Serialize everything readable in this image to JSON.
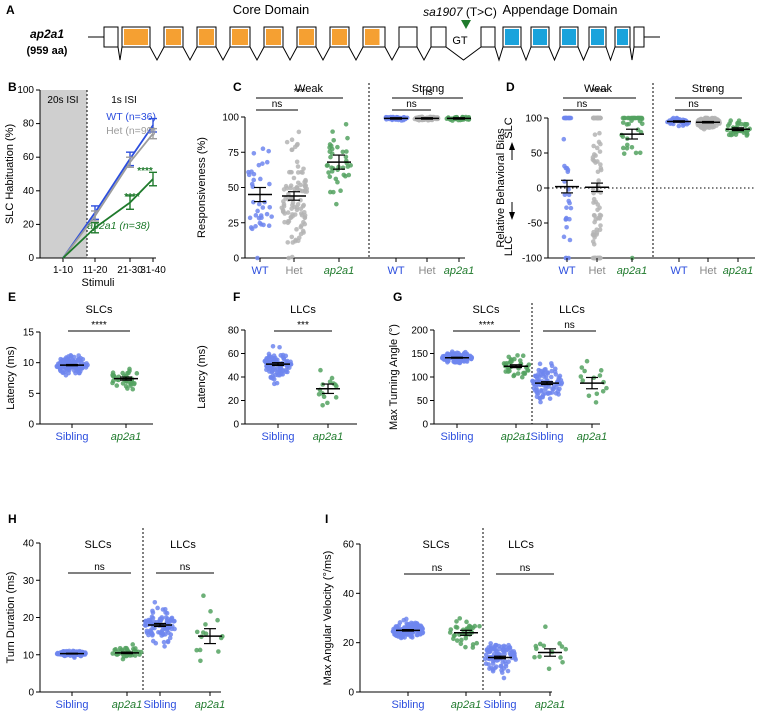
{
  "colors": {
    "wt": "#2c4ede",
    "het": "#9c9c9c",
    "mut": "#1f7a2c",
    "wt_pt": "#6f86ee",
    "het_pt": "#b4b4b4",
    "mut_pt": "#53a260",
    "core": "#f5a032",
    "app": "#1aa3dc",
    "isi": "#cfcfcf"
  },
  "panel_a": {
    "letter": "A",
    "gene": "ap2a1",
    "aa": "(959 aa)",
    "core_label": "Core Domain",
    "app_label": "Appendage Domain",
    "allele": "sa1907",
    "mutation": " (T>C)",
    "gt": "GT"
  },
  "panel_letters": [
    "B",
    "C",
    "D",
    "E",
    "F",
    "G",
    "H",
    "I"
  ],
  "chart_data": [
    {
      "id": "B",
      "type": "line",
      "xlabel": "Stimuli",
      "ylabel": "SLC Habituation (%)",
      "ylim": [
        0,
        100
      ],
      "yticks": [
        "0",
        "20",
        "40",
        "60",
        "80",
        "100"
      ],
      "categories": [
        "1-10",
        "11-20",
        "21-30",
        "31-40"
      ],
      "isi_labels": [
        "20s ISI",
        "1s ISI"
      ],
      "series": [
        {
          "name": "WT (n=36)",
          "key": "wt",
          "values": [
            0,
            27,
            59,
            79
          ],
          "err": [
            0,
            4,
            4,
            4
          ]
        },
        {
          "name": "Het (n=99)",
          "key": "het",
          "values": [
            0,
            25,
            57,
            74
          ],
          "err": [
            0,
            3,
            3,
            3
          ]
        },
        {
          "name": "ap2a1 (n=38)",
          "key": "mut",
          "values": [
            0,
            18,
            33,
            47
          ],
          "err": [
            0,
            3,
            4,
            4
          ]
        }
      ],
      "annotations": [
        "****",
        "****"
      ]
    },
    {
      "id": "C",
      "type": "scatter",
      "ylabel": "Responsiveness (%)",
      "ylim": [
        0,
        100
      ],
      "yticks": [
        "0",
        "25",
        "50",
        "75",
        "100"
      ],
      "sections": [
        "Weak",
        "Strong"
      ],
      "groups": [
        {
          "label": "WT",
          "key": "wt",
          "mean": 45,
          "sem": 5,
          "n": 36
        },
        {
          "label": "Het",
          "key": "het",
          "mean": 44,
          "sem": 3,
          "n": 99
        },
        {
          "label": "ap2a1",
          "key": "mut",
          "mean": 68,
          "sem": 5,
          "n": 38
        },
        {
          "label": "WT",
          "key": "wt",
          "mean": 99,
          "sem": 0.5,
          "n": 36
        },
        {
          "label": "Het",
          "key": "het",
          "mean": 99,
          "sem": 0.5,
          "n": 99
        },
        {
          "label": "ap2a1",
          "key": "mut",
          "mean": 99,
          "sem": 0.5,
          "n": 38
        }
      ],
      "brackets": [
        {
          "text": "***",
          "from": 0,
          "to": 2
        },
        {
          "text": "ns",
          "from": 0,
          "to": 1
        },
        {
          "text": "ns",
          "from": 3,
          "to": 5
        },
        {
          "text": "ns",
          "from": 3,
          "to": 4
        }
      ]
    },
    {
      "id": "D",
      "type": "scatter",
      "ylabel": "Relative Behavioral Bias",
      "ylim": [
        -100,
        100
      ],
      "yticks": [
        "-100",
        "-50",
        "0",
        "50",
        "100"
      ],
      "side_labels": [
        "SLC",
        "LLC"
      ],
      "sections": [
        "Weak",
        "Strong"
      ],
      "groups": [
        {
          "label": "WT",
          "key": "wt",
          "mean": 2,
          "sem": 9,
          "n": 36
        },
        {
          "label": "Het",
          "key": "het",
          "mean": 1,
          "sem": 6,
          "n": 99
        },
        {
          "label": "ap2a1",
          "key": "mut",
          "mean": 77,
          "sem": 7,
          "n": 38
        },
        {
          "label": "WT",
          "key": "wt",
          "mean": 95,
          "sem": 1,
          "n": 36
        },
        {
          "label": "Het",
          "key": "het",
          "mean": 94,
          "sem": 1,
          "n": 99
        },
        {
          "label": "ap2a1",
          "key": "mut",
          "mean": 84,
          "sem": 2,
          "n": 38
        }
      ],
      "brackets": [
        {
          "text": "****",
          "from": 0,
          "to": 2
        },
        {
          "text": "ns",
          "from": 0,
          "to": 1
        },
        {
          "text": "*",
          "from": 3,
          "to": 5
        },
        {
          "text": "ns",
          "from": 3,
          "to": 4
        }
      ]
    },
    {
      "id": "E",
      "type": "scatter",
      "title": "SLCs",
      "ylabel": "Latency (ms)",
      "ylim": [
        0,
        15
      ],
      "yticks": [
        "0",
        "5",
        "10",
        "15"
      ],
      "groups": [
        {
          "label": "Sibling",
          "key": "wt",
          "mean": 9.6,
          "sem": 0.1,
          "n": 130
        },
        {
          "label": "ap2a1",
          "key": "mut",
          "mean": 7.4,
          "sem": 0.25,
          "n": 36
        }
      ],
      "brackets": [
        {
          "text": "****",
          "from": 0,
          "to": 1
        }
      ]
    },
    {
      "id": "F",
      "type": "scatter",
      "title": "LLCs",
      "ylabel": "Latency (ms)",
      "ylim": [
        0,
        80
      ],
      "yticks": [
        "0",
        "20",
        "40",
        "60",
        "80"
      ],
      "groups": [
        {
          "label": "Sibling",
          "key": "wt",
          "mean": 51,
          "sem": 1.2,
          "n": 90
        },
        {
          "label": "ap2a1",
          "key": "mut",
          "mean": 30,
          "sem": 4,
          "n": 14
        }
      ],
      "brackets": [
        {
          "text": "***",
          "from": 0,
          "to": 1
        }
      ]
    },
    {
      "id": "G",
      "type": "scatter",
      "ylabel": "Max Turning Angle (°)",
      "ylim": [
        0,
        200
      ],
      "yticks": [
        "0",
        "50",
        "100",
        "150",
        "200"
      ],
      "sections": [
        "SLCs",
        "LLCs"
      ],
      "groups": [
        {
          "label": "Sibling",
          "key": "wt",
          "mean": 141,
          "sem": 1,
          "n": 130
        },
        {
          "label": "ap2a1",
          "key": "mut",
          "mean": 123,
          "sem": 3,
          "n": 36
        },
        {
          "label": "Sibling",
          "key": "wt",
          "mean": 87,
          "sem": 3,
          "n": 90
        },
        {
          "label": "ap2a1",
          "key": "mut",
          "mean": 87,
          "sem": 12,
          "n": 14
        }
      ],
      "brackets": [
        {
          "text": "****",
          "from": 0,
          "to": 1
        },
        {
          "text": "ns",
          "from": 2,
          "to": 3
        }
      ]
    },
    {
      "id": "H",
      "type": "scatter",
      "ylabel": "Turn Duration (ms)",
      "ylim": [
        0,
        40
      ],
      "yticks": [
        "0",
        "10",
        "20",
        "30",
        "40"
      ],
      "sections": [
        "SLCs",
        "LLCs"
      ],
      "groups": [
        {
          "label": "Sibling",
          "key": "wt",
          "mean": 10.3,
          "sem": 0.1,
          "n": 130
        },
        {
          "label": "ap2a1",
          "key": "mut",
          "mean": 10.5,
          "sem": 0.2,
          "n": 36
        },
        {
          "label": "Sibling",
          "key": "wt",
          "mean": 18,
          "sem": 0.4,
          "n": 90
        },
        {
          "label": "ap2a1",
          "key": "mut",
          "mean": 15,
          "sem": 2,
          "n": 14
        }
      ],
      "brackets": [
        {
          "text": "ns",
          "from": 0,
          "to": 1
        },
        {
          "text": "ns",
          "from": 2,
          "to": 3
        }
      ]
    },
    {
      "id": "I",
      "type": "scatter",
      "ylabel": "Max Angular Velocity (°/ms)",
      "ylim": [
        0,
        60
      ],
      "yticks": [
        "0",
        "20",
        "40",
        "60"
      ],
      "sections": [
        "SLCs",
        "LLCs"
      ],
      "groups": [
        {
          "label": "Sibling",
          "key": "wt",
          "mean": 25,
          "sem": 0.3,
          "n": 130
        },
        {
          "label": "ap2a1",
          "key": "mut",
          "mean": 24,
          "sem": 1,
          "n": 36
        },
        {
          "label": "Sibling",
          "key": "wt",
          "mean": 14,
          "sem": 0.5,
          "n": 90
        },
        {
          "label": "ap2a1",
          "key": "mut",
          "mean": 16,
          "sem": 1.5,
          "n": 14
        }
      ],
      "brackets": [
        {
          "text": "ns",
          "from": 0,
          "to": 1
        },
        {
          "text": "ns",
          "from": 2,
          "to": 3
        }
      ]
    }
  ]
}
